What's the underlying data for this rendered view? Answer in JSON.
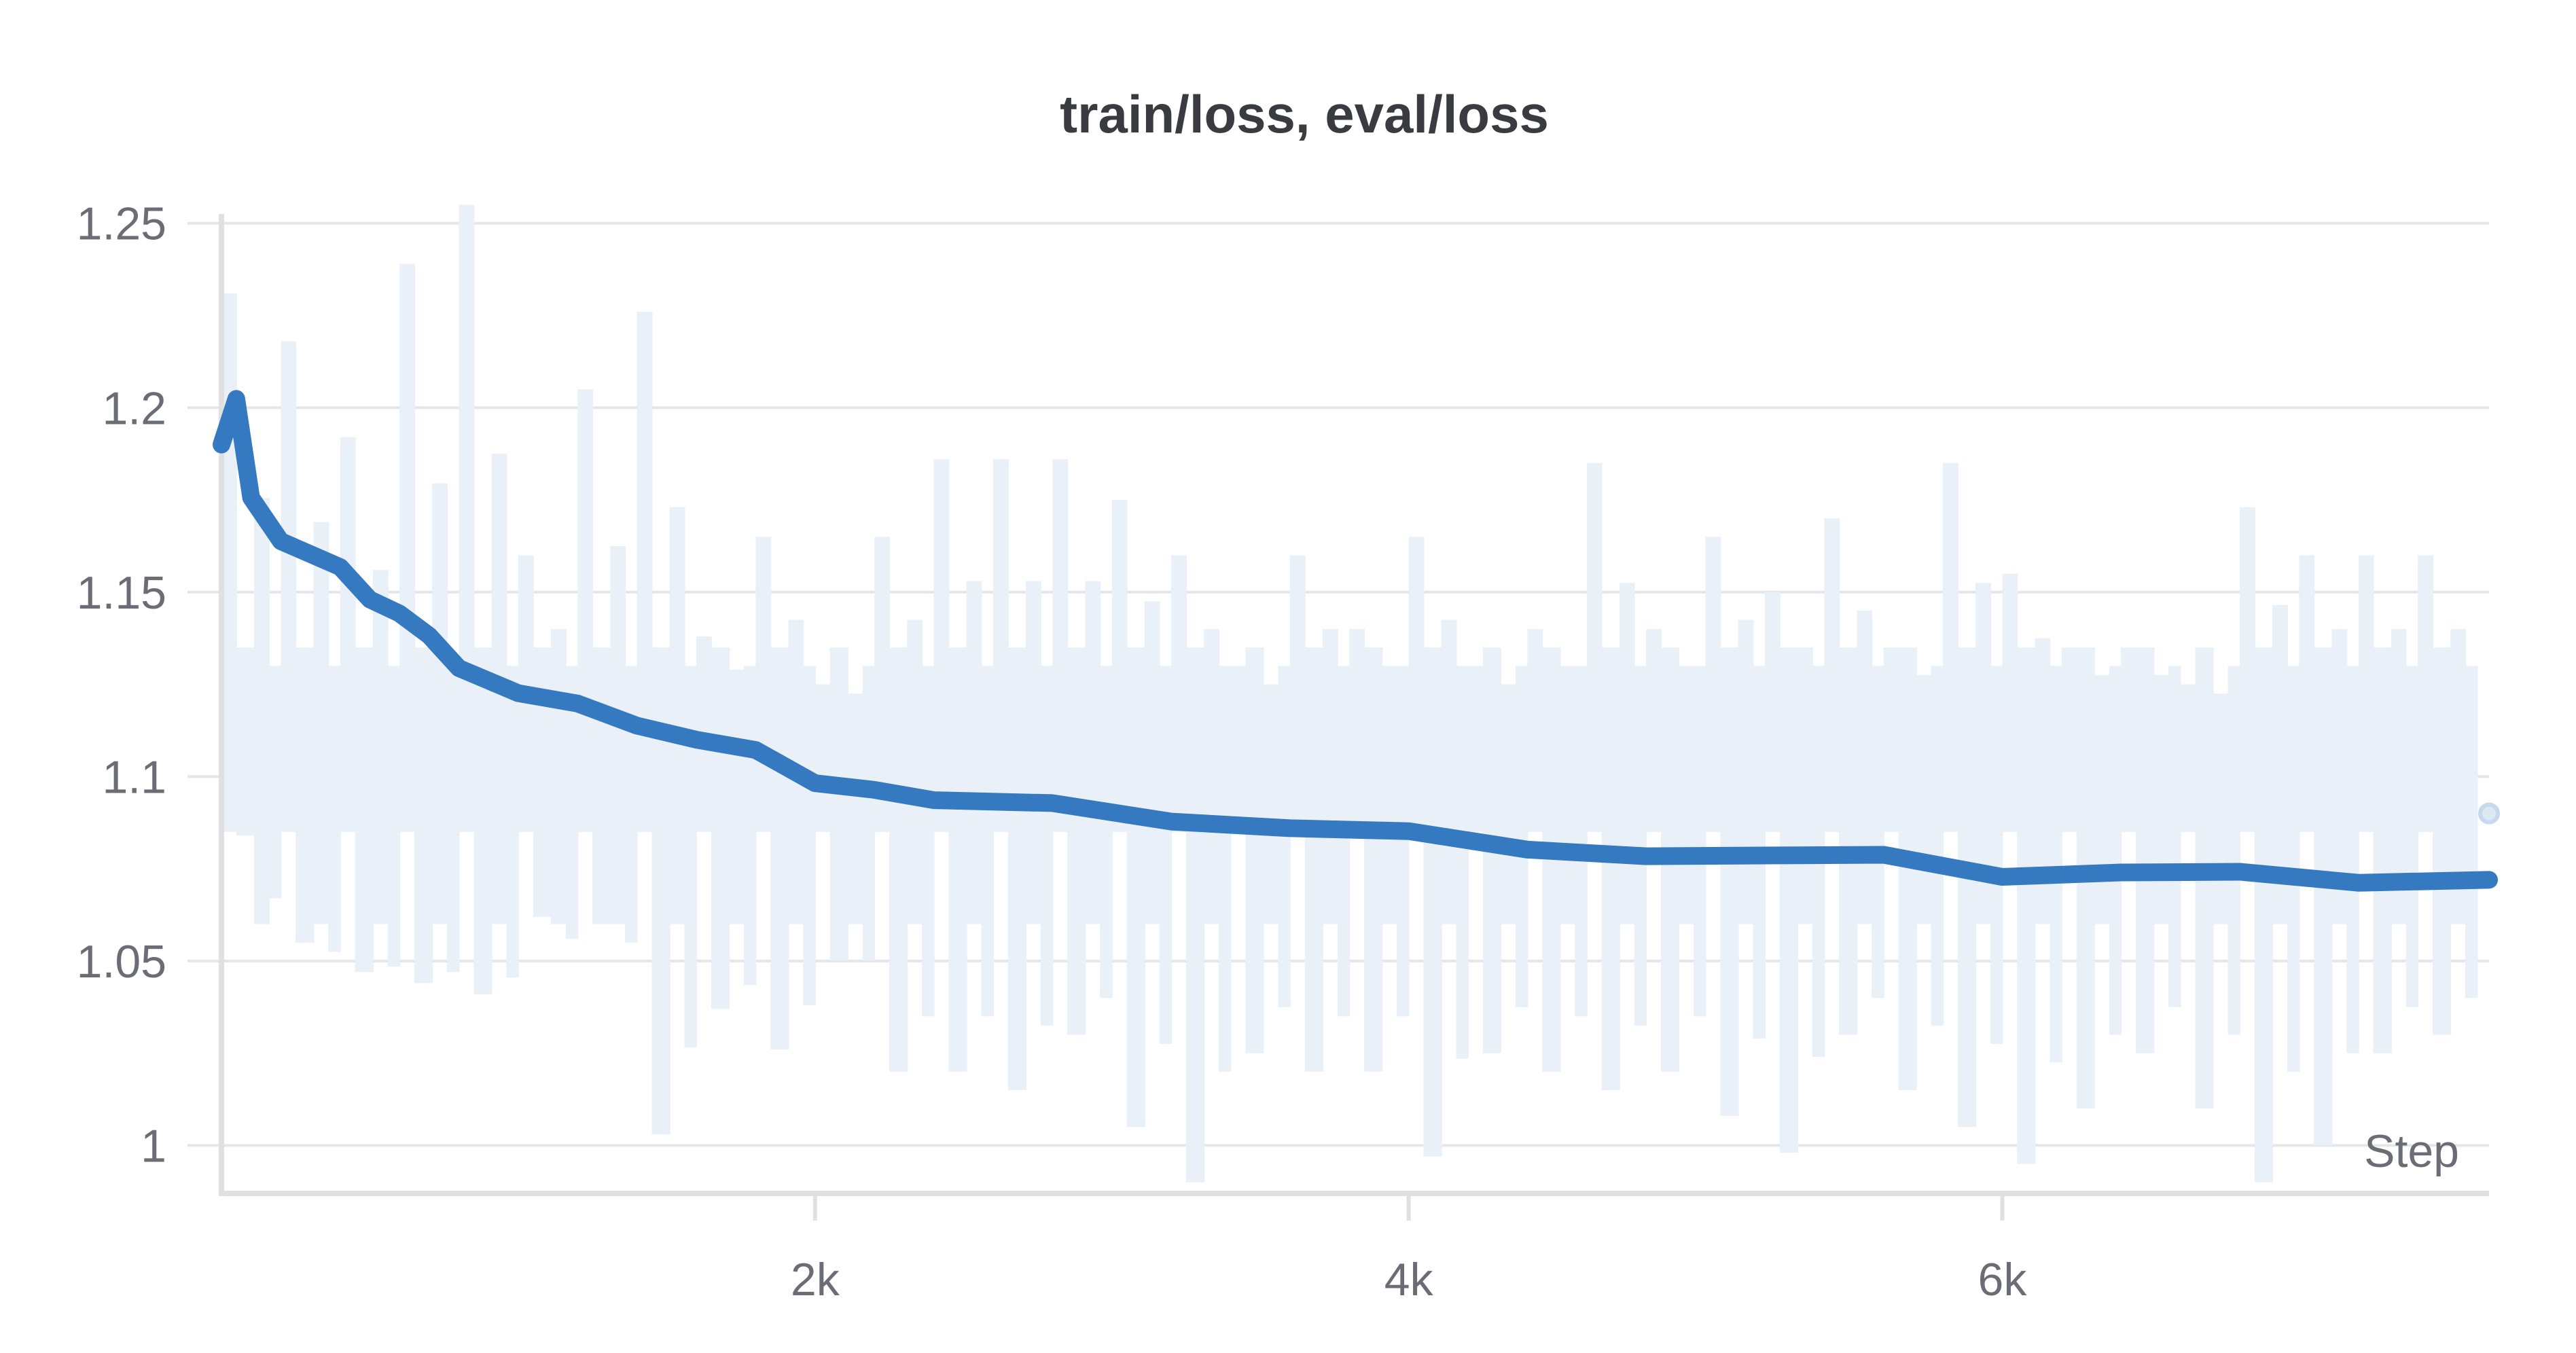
{
  "chart_data": {
    "type": "line",
    "title": "train/loss, eval/loss",
    "xlabel": "Step",
    "ylabel": "",
    "xlim": [
      0,
      7640
    ],
    "ylim": [
      0.987,
      1.254
    ],
    "grid": true,
    "x_ticks": [
      {
        "value": 2000,
        "label": "2k"
      },
      {
        "value": 4000,
        "label": "4k"
      },
      {
        "value": 6000,
        "label": "6k"
      }
    ],
    "y_ticks": [
      {
        "value": 1.25,
        "label": "1.25"
      },
      {
        "value": 1.2,
        "label": "1.2"
      },
      {
        "value": 1.15,
        "label": "1.15"
      },
      {
        "value": 1.1,
        "label": "1.1"
      },
      {
        "value": 1.05,
        "label": "1.05"
      },
      {
        "value": 1.0,
        "label": "1"
      }
    ],
    "colors": {
      "smoothed": "#3579c0",
      "raw": "#e9f0f8",
      "eval": "#c8d9ee",
      "grid": "#e6e6e8",
      "axis": "#e0e0e2"
    },
    "series": [
      {
        "role": "train/loss smoothed",
        "x": [
          0,
          50,
          100,
          200,
          400,
          500,
          600,
          700,
          800,
          1000,
          1200,
          1400,
          1600,
          1800,
          2000,
          2200,
          2400,
          2800,
          3200,
          3600,
          4000,
          4400,
          4800,
          5200,
          5600,
          6000,
          6400,
          6800,
          7200,
          7640
        ],
        "y": [
          1.19,
          1.203,
          1.175,
          1.162,
          1.158,
          1.148,
          1.143,
          1.14,
          1.13,
          1.122,
          1.118,
          1.115,
          1.11,
          1.106,
          1.1,
          1.097,
          1.093,
          1.091,
          1.089,
          1.086,
          1.084,
          1.082,
          1.079,
          1.078,
          1.077,
          1.074,
          1.074,
          1.073,
          1.073,
          1.072
        ]
      },
      {
        "role": "train/loss raw range",
        "bucket_size": 200,
        "bucket_start": [
          0,
          200,
          400,
          600,
          800,
          1000,
          1200,
          1400,
          1600,
          1800,
          2000,
          2200,
          2400,
          2600,
          2800,
          3000,
          3200,
          3400,
          3600,
          3800,
          4000,
          4200,
          4400,
          4600,
          4800,
          5000,
          5200,
          5400,
          5600,
          5800,
          6000,
          6200,
          6400,
          6600,
          6800,
          7000,
          7200,
          7400
        ],
        "max": [
          1.231,
          1.218,
          1.192,
          1.239,
          1.255,
          1.16,
          1.205,
          1.226,
          1.138,
          1.165,
          1.125,
          1.165,
          1.186,
          1.186,
          1.186,
          1.175,
          1.16,
          1.13,
          1.16,
          1.14,
          1.165,
          1.13,
          1.14,
          1.185,
          1.14,
          1.165,
          1.15,
          1.17,
          1.135,
          1.185,
          1.155,
          1.135,
          1.135,
          1.125,
          1.173,
          1.16,
          1.16,
          1.16
        ],
        "min": [
          1.084,
          1.055,
          1.047,
          1.044,
          1.041,
          1.062,
          1.06,
          1.003,
          1.037,
          1.026,
          1.05,
          1.02,
          1.02,
          1.015,
          1.03,
          1.005,
          0.99,
          1.025,
          1.02,
          1.02,
          0.997,
          1.025,
          1.02,
          1.015,
          1.02,
          1.008,
          0.998,
          1.03,
          1.015,
          1.005,
          0.995,
          1.01,
          1.025,
          1.01,
          0.99,
          1.0,
          1.025,
          1.03
        ]
      },
      {
        "role": "eval/loss",
        "x": [
          7640
        ],
        "y": [
          1.09
        ]
      }
    ]
  }
}
